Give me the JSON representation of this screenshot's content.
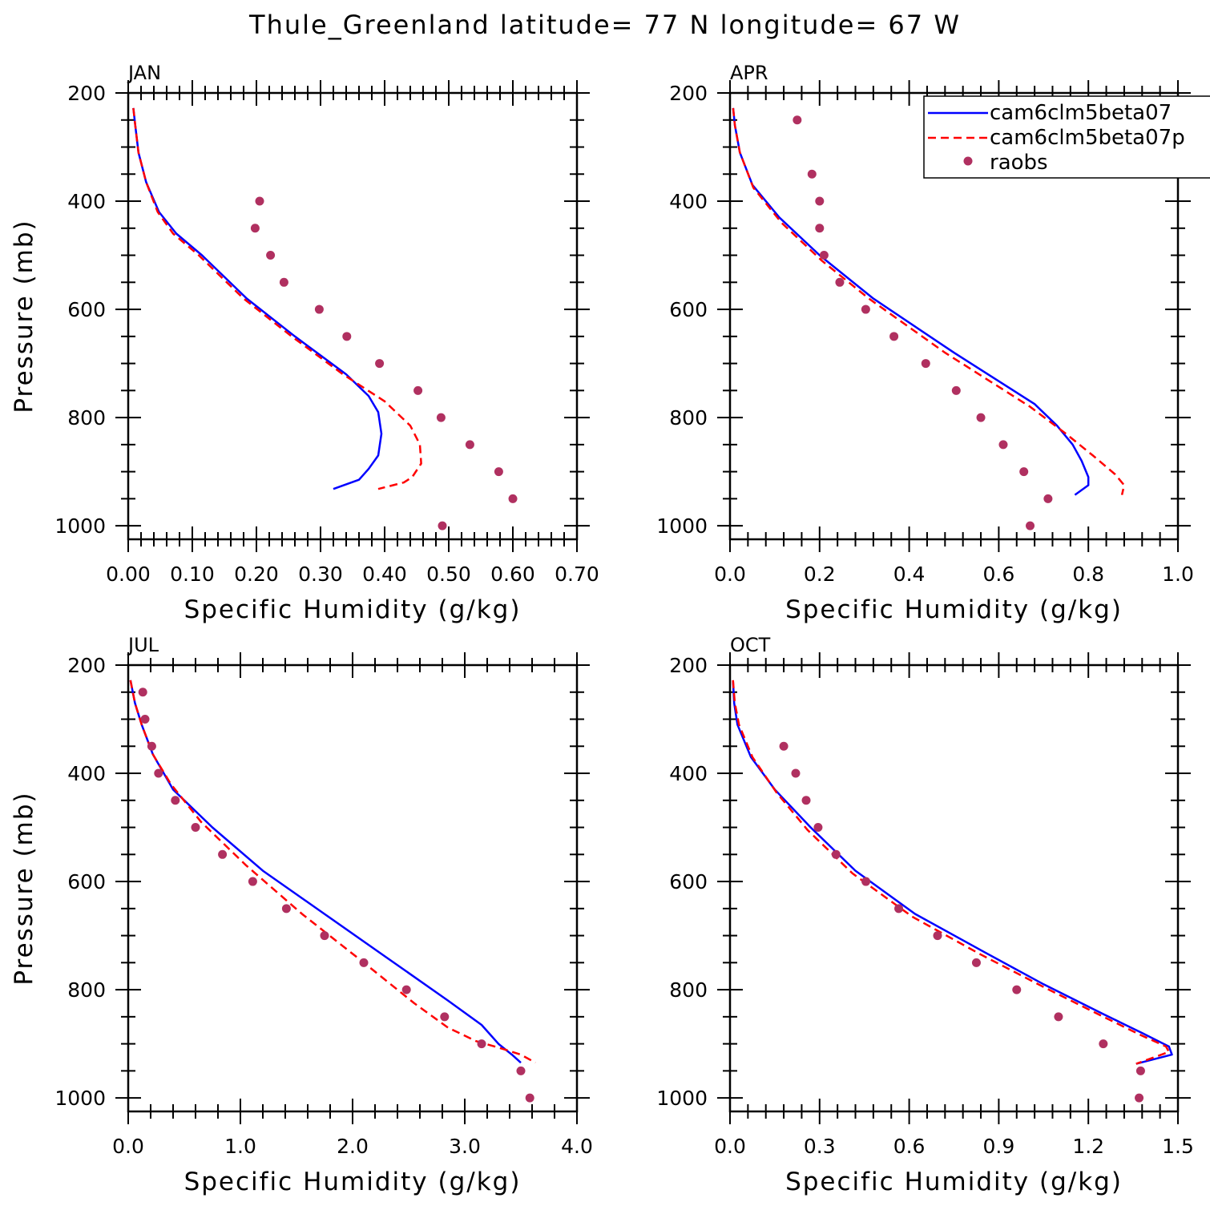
{
  "title": "Thule_Greenland  latitude= 77 N longitude= 67 W",
  "legend": {
    "entries": [
      {
        "label": "cam6clm5beta07",
        "style": "solid",
        "color": "#0000ff"
      },
      {
        "label": "cam6clm5beta07p",
        "style": "dashed",
        "color": "#ff0000"
      },
      {
        "label": "raobs",
        "style": "dots",
        "color": "#b03060"
      }
    ]
  },
  "colors": {
    "model_solid": "#0000ff",
    "model_dashed": "#ff0000",
    "obs": "#b03060"
  },
  "chart_data": [
    {
      "type": "line",
      "panel": "JAN",
      "xlabel": "Specific Humidity (g/kg)",
      "ylabel": "Pressure (mb)",
      "xlim": [
        0,
        0.7
      ],
      "ylim": [
        1025,
        200
      ],
      "xticks": [
        0,
        0.1,
        0.2,
        0.3,
        0.4,
        0.5,
        0.6,
        0.7
      ],
      "xticklabels": [
        "0.00",
        "0.10",
        "0.20",
        "0.30",
        "0.40",
        "0.50",
        "0.60",
        "0.70"
      ],
      "yticks": [
        200,
        400,
        600,
        800,
        1000
      ],
      "yticklabels": [
        "200",
        "400",
        "600",
        "800",
        "1000"
      ],
      "series": [
        {
          "name": "cam6clm5beta07",
          "x": [
            0.008,
            0.011,
            0.016,
            0.028,
            0.048,
            0.075,
            0.115,
            0.185,
            0.26,
            0.34,
            0.375,
            0.39,
            0.395,
            0.39,
            0.375,
            0.36,
            0.32
          ],
          "y": [
            228,
            260,
            310,
            365,
            420,
            460,
            500,
            580,
            650,
            720,
            760,
            790,
            830,
            870,
            895,
            915,
            932
          ]
        },
        {
          "name": "cam6clm5beta07p",
          "x": [
            0.008,
            0.011,
            0.016,
            0.028,
            0.046,
            0.07,
            0.11,
            0.18,
            0.255,
            0.335,
            0.4,
            0.44,
            0.455,
            0.457,
            0.443,
            0.43,
            0.39
          ],
          "y": [
            228,
            260,
            310,
            365,
            420,
            460,
            500,
            580,
            650,
            720,
            770,
            815,
            850,
            885,
            910,
            920,
            932
          ]
        },
        {
          "name": "raobs",
          "x": [
            0.205,
            0.198,
            0.222,
            0.243,
            0.298,
            0.341,
            0.392,
            0.452,
            0.488,
            0.533,
            0.578,
            0.6,
            0.49
          ],
          "y": [
            400,
            450,
            500,
            550,
            600,
            650,
            700,
            750,
            800,
            850,
            900,
            950,
            1000
          ]
        }
      ]
    },
    {
      "type": "line",
      "panel": "APR",
      "xlabel": "Specific Humidity (g/kg)",
      "ylabel": "",
      "xlim": [
        0,
        1.0
      ],
      "ylim": [
        1025,
        200
      ],
      "xticks": [
        0,
        0.2,
        0.4,
        0.6,
        0.8,
        1.0
      ],
      "xticklabels": [
        "0.0",
        "0.2",
        "0.4",
        "0.6",
        "0.8",
        "1.0"
      ],
      "yticks": [
        200,
        400,
        600,
        800,
        1000
      ],
      "yticklabels": [
        "200",
        "400",
        "600",
        "800",
        "1000"
      ],
      "series": [
        {
          "name": "cam6clm5beta07",
          "x": [
            0.007,
            0.011,
            0.022,
            0.05,
            0.11,
            0.2,
            0.32,
            0.5,
            0.68,
            0.73,
            0.765,
            0.785,
            0.8,
            0.8,
            0.77
          ],
          "y": [
            228,
            260,
            310,
            370,
            430,
            500,
            580,
            680,
            775,
            815,
            850,
            880,
            910,
            925,
            943
          ]
        },
        {
          "name": "cam6clm5beta07p",
          "x": [
            0.007,
            0.011,
            0.022,
            0.052,
            0.115,
            0.205,
            0.31,
            0.48,
            0.67,
            0.75,
            0.81,
            0.86,
            0.88,
            0.875
          ],
          "y": [
            228,
            260,
            310,
            375,
            440,
            510,
            580,
            680,
            780,
            830,
            870,
            905,
            925,
            943
          ]
        },
        {
          "name": "raobs",
          "x": [
            0.15,
            0.183,
            0.2,
            0.2,
            0.21,
            0.245,
            0.303,
            0.366,
            0.437,
            0.505,
            0.56,
            0.61,
            0.656,
            0.71,
            0.67
          ],
          "y": [
            250,
            350,
            400,
            450,
            500,
            550,
            600,
            650,
            700,
            750,
            800,
            850,
            900,
            950,
            1000
          ]
        }
      ]
    },
    {
      "type": "line",
      "panel": "JUL",
      "xlabel": "Specific Humidity (g/kg)",
      "ylabel": "Pressure (mb)",
      "xlim": [
        0,
        4.0
      ],
      "ylim": [
        1025,
        200
      ],
      "xticks": [
        0,
        1,
        2,
        3,
        4
      ],
      "xticklabels": [
        "0.0",
        "1.0",
        "2.0",
        "3.0",
        "4.0"
      ],
      "yticks": [
        200,
        400,
        600,
        800,
        1000
      ],
      "yticklabels": [
        "200",
        "400",
        "600",
        "800",
        "1000"
      ],
      "series": [
        {
          "name": "cam6clm5beta07",
          "x": [
            0.02,
            0.06,
            0.12,
            0.22,
            0.4,
            0.75,
            1.2,
            1.75,
            2.3,
            2.85,
            3.15,
            3.3,
            3.42,
            3.5
          ],
          "y": [
            228,
            270,
            310,
            365,
            430,
            500,
            580,
            660,
            740,
            820,
            865,
            900,
            920,
            935
          ]
        },
        {
          "name": "cam6clm5beta07p",
          "x": [
            0.02,
            0.06,
            0.12,
            0.22,
            0.38,
            0.65,
            1.05,
            1.55,
            2.1,
            2.55,
            2.85,
            3.1,
            3.35,
            3.5,
            3.63
          ],
          "y": [
            228,
            270,
            310,
            365,
            420,
            490,
            570,
            660,
            750,
            825,
            870,
            895,
            910,
            920,
            935
          ]
        },
        {
          "name": "raobs",
          "x": [
            0.13,
            0.15,
            0.21,
            0.27,
            0.42,
            0.6,
            0.84,
            1.11,
            1.41,
            1.75,
            2.1,
            2.48,
            2.82,
            3.15,
            3.5,
            3.58
          ],
          "y": [
            250,
            300,
            350,
            400,
            450,
            500,
            550,
            600,
            650,
            700,
            750,
            800,
            850,
            900,
            950,
            1000
          ]
        }
      ]
    },
    {
      "type": "line",
      "panel": "OCT",
      "xlabel": "Specific Humidity (g/kg)",
      "ylabel": "",
      "xlim": [
        0,
        1.5
      ],
      "ylim": [
        1025,
        200
      ],
      "xticks": [
        0,
        0.3,
        0.6,
        0.9,
        1.2,
        1.5
      ],
      "xticklabels": [
        "0.0",
        "0.3",
        "0.6",
        "0.9",
        "1.2",
        "1.5"
      ],
      "yticks": [
        200,
        400,
        600,
        800,
        1000
      ],
      "yticklabels": [
        "200",
        "400",
        "600",
        "800",
        "1000"
      ],
      "series": [
        {
          "name": "cam6clm5beta07",
          "x": [
            0.01,
            0.014,
            0.025,
            0.07,
            0.15,
            0.27,
            0.42,
            0.62,
            0.85,
            1.05,
            1.25,
            1.38,
            1.47,
            1.48,
            1.36
          ],
          "y": [
            228,
            270,
            310,
            370,
            430,
            500,
            580,
            660,
            730,
            790,
            845,
            880,
            905,
            920,
            937
          ]
        },
        {
          "name": "cam6clm5beta07p",
          "x": [
            0.01,
            0.016,
            0.03,
            0.075,
            0.155,
            0.26,
            0.41,
            0.61,
            0.84,
            1.05,
            1.25,
            1.38,
            1.46,
            1.47,
            1.36
          ],
          "y": [
            228,
            270,
            310,
            370,
            435,
            505,
            585,
            665,
            735,
            795,
            850,
            885,
            905,
            915,
            937
          ]
        },
        {
          "name": "raobs",
          "x": [
            0.18,
            0.22,
            0.255,
            0.295,
            0.355,
            0.455,
            0.565,
            0.695,
            0.825,
            0.96,
            1.1,
            1.25,
            1.375,
            1.37
          ],
          "y": [
            350,
            400,
            450,
            500,
            550,
            600,
            650,
            700,
            750,
            800,
            850,
            900,
            950,
            1000
          ]
        }
      ]
    }
  ]
}
